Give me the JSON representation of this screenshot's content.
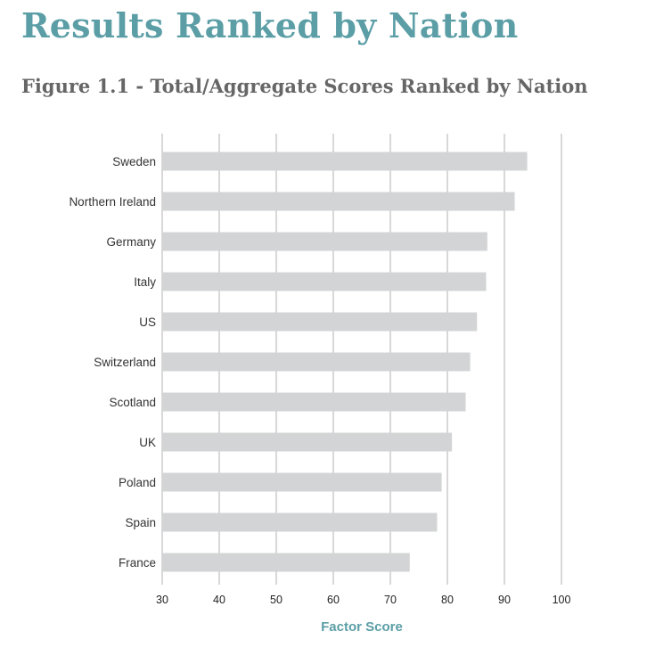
{
  "page": {
    "heading": "Results Ranked by Nation",
    "figure_title": "Figure 1.1 - Total/Aggregate Scores Ranked by Nation"
  },
  "colors": {
    "heading": "#5b9ea6",
    "figure_title": "#666666",
    "bar": "#d3d4d5",
    "grid": "#b0b0b0",
    "axis_title": "#5b9ea6"
  },
  "chart_data": {
    "type": "bar",
    "orientation": "horizontal",
    "categories": [
      "Sweden",
      "Northern Ireland",
      "Germany",
      "Italy",
      "US",
      "Switzerland",
      "Scotland",
      "UK",
      "Poland",
      "Spain",
      "France"
    ],
    "values": [
      94,
      91.8,
      87,
      86.8,
      85.2,
      84,
      83.2,
      80.8,
      79,
      78.2,
      73.4
    ],
    "title": "",
    "xlabel": "Factor Score",
    "ylabel": "",
    "xlim": [
      30,
      100
    ],
    "xticks": [
      30,
      40,
      50,
      60,
      70,
      80,
      90,
      100
    ],
    "grid": true,
    "legend": "none"
  }
}
